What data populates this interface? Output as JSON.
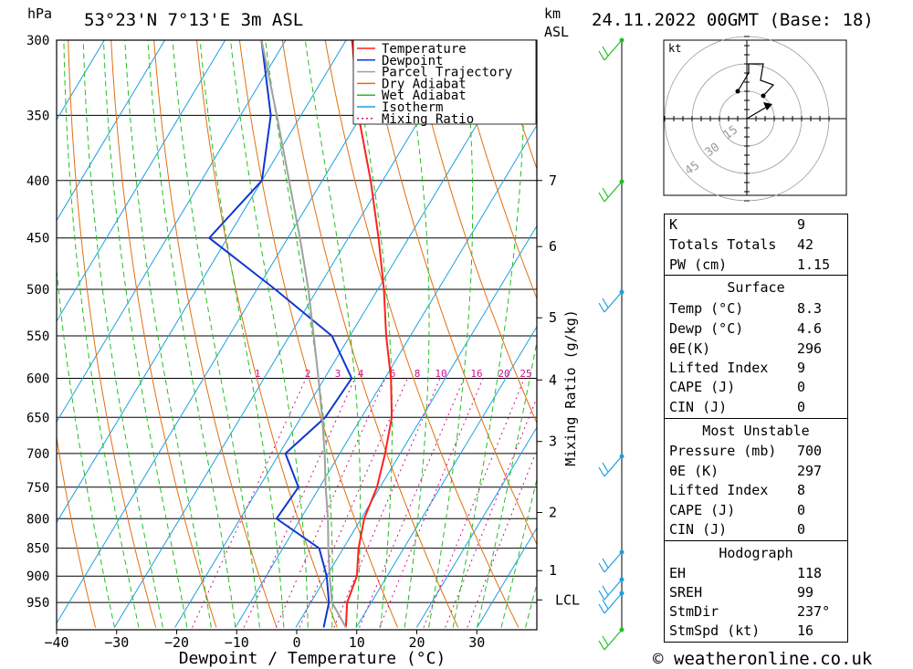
{
  "header": {
    "pressure_unit": "hPa",
    "location": "53°23'N  7°13'E  3m  ASL",
    "km_label": "km",
    "asl_label": "ASL",
    "datetime": "24.11.2022  00GMT  (Base: 18)"
  },
  "chart_data": {
    "type": "line",
    "title": "Skew-T log-P diagram",
    "xlabel": "Dewpoint / Temperature (°C)",
    "ylabel": "hPa",
    "right_ylabel": "Mixing Ratio (g/kg)",
    "x_ticks": [
      "−40",
      "−30",
      "−20",
      "−10",
      "0",
      "10",
      "20",
      "30"
    ],
    "x_tick_values": [
      -40,
      -30,
      -20,
      -10,
      0,
      10,
      20,
      30
    ],
    "pressure_ticks": [
      300,
      350,
      400,
      450,
      500,
      550,
      600,
      650,
      700,
      750,
      800,
      850,
      900,
      950
    ],
    "pressure_range": [
      300,
      1000
    ],
    "temperature_range": [
      -40,
      40
    ],
    "height_ticks_km": [
      {
        "label": "7",
        "p": 400
      },
      {
        "label": "6",
        "p": 458
      },
      {
        "label": "5",
        "p": 530
      },
      {
        "label": "4",
        "p": 602
      },
      {
        "label": "3",
        "p": 683
      },
      {
        "label": "2",
        "p": 790
      },
      {
        "label": "1",
        "p": 890
      },
      {
        "label": "LCL",
        "p": 945
      }
    ],
    "mixing_ratio_labels": [
      "1",
      "2",
      "3",
      "4",
      "6",
      "8",
      "10",
      "16",
      "20",
      "25"
    ],
    "mixing_ratio_values": [
      1,
      2,
      3,
      4,
      6,
      8,
      10,
      16,
      20,
      25
    ],
    "legend": [
      "Temperature",
      "Dewpoint",
      "Parcel Trajectory",
      "Dry Adiabat",
      "Wet Adiabat",
      "Isotherm",
      "Mixing Ratio"
    ],
    "series": [
      {
        "name": "Temperature",
        "color": "#ff2020",
        "points": [
          [
            1000,
            8.3
          ],
          [
            950,
            6.0
          ],
          [
            900,
            5.0
          ],
          [
            850,
            2.5
          ],
          [
            800,
            0.5
          ],
          [
            750,
            -0.5
          ],
          [
            700,
            -2.5
          ],
          [
            650,
            -5.0
          ],
          [
            600,
            -9.0
          ],
          [
            550,
            -14.0
          ],
          [
            500,
            -19.0
          ],
          [
            450,
            -25.0
          ],
          [
            400,
            -32.0
          ],
          [
            350,
            -40.5
          ],
          [
            300,
            -49.0
          ]
        ]
      },
      {
        "name": "Dewpoint",
        "color": "#1038d0",
        "points": [
          [
            1000,
            4.6
          ],
          [
            950,
            3.0
          ],
          [
            900,
            0.0
          ],
          [
            850,
            -4.0
          ],
          [
            800,
            -14.0
          ],
          [
            750,
            -13.5
          ],
          [
            700,
            -19.0
          ],
          [
            650,
            -16.0
          ],
          [
            600,
            -15.5
          ],
          [
            550,
            -23.0
          ],
          [
            500,
            -37.0
          ],
          [
            450,
            -53.0
          ],
          [
            400,
            -50.0
          ],
          [
            350,
            -55.0
          ],
          [
            300,
            -64.0
          ]
        ]
      },
      {
        "name": "Parcel Trajectory",
        "color": "#a0a0a0",
        "points": [
          [
            1000,
            8.3
          ],
          [
            950,
            3.5
          ],
          [
            900,
            0.5
          ],
          [
            850,
            -2.5
          ],
          [
            800,
            -5.5
          ],
          [
            750,
            -9.0
          ],
          [
            700,
            -12.5
          ],
          [
            650,
            -16.5
          ],
          [
            600,
            -21.0
          ],
          [
            550,
            -26.0
          ],
          [
            500,
            -31.5
          ],
          [
            450,
            -38.0
          ],
          [
            400,
            -45.5
          ],
          [
            350,
            -54.0
          ],
          [
            300,
            -64.0
          ]
        ]
      }
    ]
  },
  "hodograph": {
    "unit_label": "kt",
    "ring_labels": [
      "15",
      "30",
      "45"
    ]
  },
  "indices": {
    "rows": [
      {
        "k": "K",
        "v": "9"
      },
      {
        "k": "Totals Totals",
        "v": "42"
      },
      {
        "k": "PW (cm)",
        "v": "1.15"
      }
    ],
    "surface": {
      "title": "Surface",
      "rows": [
        {
          "k": "Temp (°C)",
          "v": "8.3"
        },
        {
          "k": "Dewp (°C)",
          "v": "4.6"
        },
        {
          "k": "θE(K)",
          "v": "296"
        },
        {
          "k": "Lifted Index",
          "v": "9"
        },
        {
          "k": "CAPE (J)",
          "v": "0"
        },
        {
          "k": "CIN (J)",
          "v": "0"
        }
      ]
    },
    "most_unstable": {
      "title": "Most Unstable",
      "rows": [
        {
          "k": "Pressure (mb)",
          "v": "700"
        },
        {
          "k": "θE (K)",
          "v": "297"
        },
        {
          "k": "Lifted Index",
          "v": "8"
        },
        {
          "k": "CAPE (J)",
          "v": "0"
        },
        {
          "k": "CIN (J)",
          "v": "0"
        }
      ]
    },
    "hodograph_indices": {
      "title": "Hodograph",
      "rows": [
        {
          "k": "EH",
          "v": "118"
        },
        {
          "k": "SREH",
          "v": "99"
        },
        {
          "k": "StmDir",
          "v": "237°"
        },
        {
          "k": "StmSpd (kt)",
          "v": "16"
        }
      ]
    }
  },
  "footer": {
    "copyright_symbol": "©",
    "site": "weatheronline.co.uk"
  }
}
